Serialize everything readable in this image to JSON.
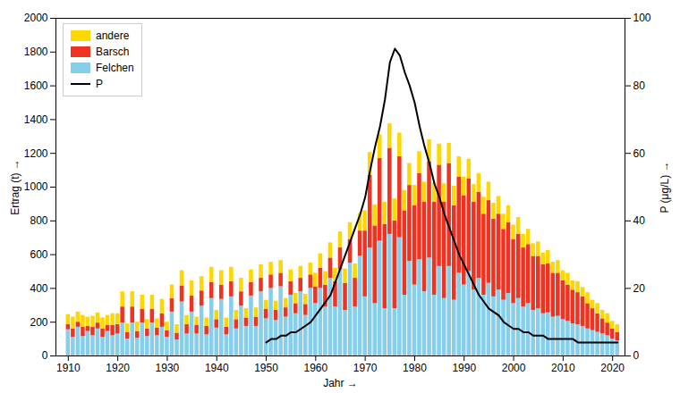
{
  "chart_data": {
    "type": "bar",
    "stacked": true,
    "x": [
      1910,
      1911,
      1912,
      1913,
      1914,
      1915,
      1916,
      1917,
      1918,
      1919,
      1920,
      1921,
      1922,
      1923,
      1924,
      1925,
      1926,
      1927,
      1928,
      1929,
      1930,
      1931,
      1932,
      1933,
      1934,
      1935,
      1936,
      1937,
      1938,
      1939,
      1940,
      1941,
      1942,
      1943,
      1944,
      1945,
      1946,
      1947,
      1948,
      1949,
      1950,
      1951,
      1952,
      1953,
      1954,
      1955,
      1956,
      1957,
      1958,
      1959,
      1960,
      1961,
      1962,
      1963,
      1964,
      1965,
      1966,
      1967,
      1968,
      1969,
      1970,
      1971,
      1972,
      1973,
      1974,
      1975,
      1976,
      1977,
      1978,
      1979,
      1980,
      1981,
      1982,
      1983,
      1984,
      1985,
      1986,
      1987,
      1988,
      1989,
      1990,
      1991,
      1992,
      1993,
      1994,
      1995,
      1996,
      1997,
      1998,
      1999,
      2000,
      2001,
      2002,
      2003,
      2004,
      2005,
      2006,
      2007,
      2008,
      2009,
      2010,
      2011,
      2012,
      2013,
      2014,
      2015,
      2016,
      2017,
      2018,
      2019,
      2020,
      2021
    ],
    "xlabel": "Jahr",
    "ylabel": "Ertrag (t)",
    "y2label": "P (μg/L)",
    "xlim": [
      1907.5,
      2022.5
    ],
    "xticks": [
      1910,
      1920,
      1930,
      1940,
      1950,
      1960,
      1970,
      1980,
      1990,
      2000,
      2010,
      2020
    ],
    "ylim": [
      0,
      2000
    ],
    "yticks": [
      0,
      200,
      400,
      600,
      800,
      1000,
      1200,
      1400,
      1600,
      1800,
      2000
    ],
    "y2lim": [
      0,
      100
    ],
    "y2ticks": [
      0,
      20,
      40,
      60,
      80,
      100
    ],
    "grid": false,
    "legend": "upper left",
    "series": [
      {
        "name": "Felchen",
        "color": "#87CEEB",
        "values": [
          155,
          110,
          170,
          115,
          145,
          120,
          160,
          110,
          145,
          120,
          130,
          195,
          100,
          195,
          105,
          195,
          115,
          195,
          120,
          170,
          110,
          260,
          95,
          320,
          130,
          260,
          130,
          295,
          125,
          340,
          165,
          335,
          125,
          350,
          160,
          295,
          175,
          355,
          175,
          380,
          220,
          400,
          210,
          410,
          230,
          360,
          250,
          380,
          240,
          400,
          310,
          400,
          290,
          460,
          290,
          510,
          270,
          550,
          290,
          590,
          350,
          640,
          310,
          680,
          280,
          720,
          280,
          700,
          360,
          560,
          420,
          570,
          380,
          580,
          360,
          530,
          340,
          530,
          330,
          490,
          420,
          500,
          390,
          460,
          360,
          430,
          350,
          390,
          330,
          370,
          310,
          340,
          290,
          310,
          270,
          280,
          250,
          255,
          230,
          235,
          215,
          205,
          190,
          185,
          175,
          160,
          150,
          140,
          130,
          120,
          100,
          90
        ]
      },
      {
        "name": "Barsch",
        "color": "#EE3322",
        "values": [
          30,
          50,
          30,
          55,
          30,
          50,
          35,
          50,
          35,
          60,
          55,
          95,
          40,
          95,
          40,
          80,
          45,
          80,
          45,
          80,
          40,
          80,
          40,
          95,
          55,
          95,
          50,
          90,
          50,
          95,
          50,
          85,
          45,
          90,
          55,
          85,
          50,
          80,
          55,
          80,
          55,
          80,
          60,
          80,
          55,
          80,
          60,
          80,
          65,
          80,
          100,
          120,
          130,
          120,
          150,
          130,
          160,
          140,
          170,
          150,
          390,
          430,
          460,
          490,
          500,
          510,
          520,
          480,
          500,
          450,
          470,
          510,
          530,
          570,
          550,
          600,
          570,
          610,
          560,
          570,
          530,
          550,
          520,
          510,
          480,
          490,
          460,
          450,
          420,
          420,
          380,
          380,
          350,
          350,
          320,
          310,
          290,
          290,
          260,
          255,
          230,
          215,
          200,
          190,
          175,
          150,
          130,
          110,
          90,
          75,
          60,
          50
        ]
      },
      {
        "name": "andere",
        "color": "#FFD700",
        "values": [
          60,
          70,
          60,
          70,
          55,
          65,
          60,
          65,
          60,
          70,
          65,
          90,
          50,
          90,
          55,
          85,
          55,
          85,
          55,
          85,
          50,
          80,
          50,
          90,
          55,
          90,
          50,
          85,
          50,
          90,
          55,
          85,
          55,
          85,
          55,
          80,
          55,
          75,
          55,
          80,
          55,
          75,
          55,
          75,
          55,
          70,
          60,
          70,
          60,
          70,
          80,
          85,
          80,
          90,
          80,
          95,
          85,
          100,
          85,
          105,
          120,
          135,
          125,
          140,
          130,
          145,
          130,
          140,
          120,
          130,
          120,
          130,
          120,
          130,
          115,
          125,
          110,
          120,
          115,
          120,
          110,
          115,
          105,
          110,
          100,
          110,
          95,
          105,
          90,
          100,
          85,
          100,
          80,
          90,
          75,
          85,
          70,
          80,
          65,
          75,
          60,
          70,
          55,
          65,
          55,
          65,
          50,
          60,
          50,
          55,
          45,
          45
        ]
      },
      {
        "name": "P",
        "type": "line",
        "axis": "y2",
        "color": "#000000",
        "x": [
          1950,
          1951,
          1952,
          1953,
          1954,
          1955,
          1956,
          1957,
          1958,
          1959,
          1960,
          1961,
          1962,
          1963,
          1964,
          1965,
          1966,
          1967,
          1968,
          1969,
          1970,
          1971,
          1972,
          1973,
          1974,
          1975,
          1976,
          1977,
          1978,
          1979,
          1980,
          1981,
          1982,
          1983,
          1984,
          1985,
          1986,
          1987,
          1988,
          1989,
          1990,
          1991,
          1992,
          1993,
          1994,
          1995,
          1996,
          1997,
          1998,
          1999,
          2000,
          2001,
          2002,
          2003,
          2004,
          2005,
          2006,
          2007,
          2008,
          2009,
          2010,
          2011,
          2012,
          2013,
          2014,
          2015,
          2016,
          2017,
          2018,
          2019,
          2020,
          2021
        ],
        "values": [
          4,
          5,
          5,
          6,
          6,
          7,
          7,
          8,
          9,
          10,
          12,
          14,
          16,
          18,
          22,
          26,
          30,
          34,
          38,
          42,
          47,
          55,
          62,
          68,
          76,
          87,
          91,
          89,
          84,
          80,
          75,
          68,
          62,
          57,
          51,
          47,
          42,
          38,
          34,
          30,
          27,
          24,
          21,
          18,
          16,
          14,
          13,
          12,
          10,
          9,
          8,
          8,
          7,
          7,
          6,
          6,
          6,
          5,
          5,
          5,
          5,
          5,
          5,
          4,
          4,
          4,
          4,
          4,
          4,
          4,
          4,
          4
        ]
      }
    ]
  }
}
